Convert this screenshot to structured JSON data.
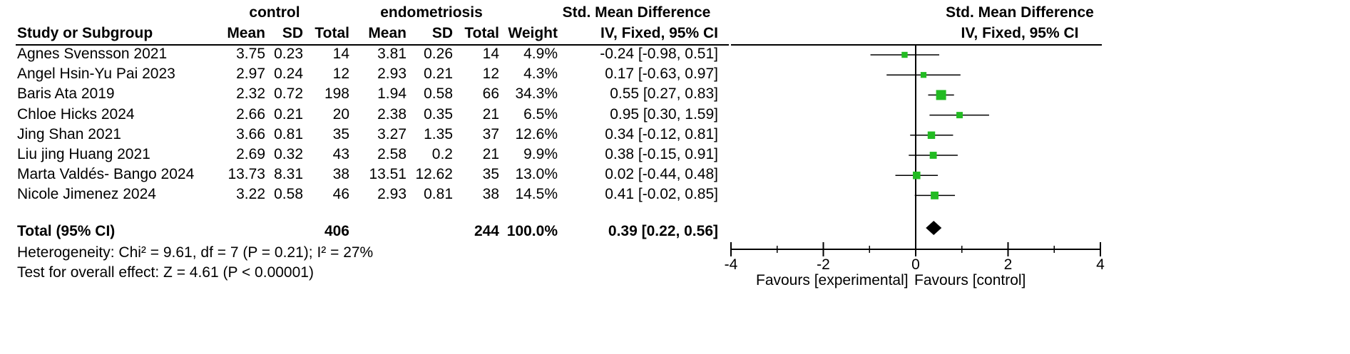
{
  "header": {
    "group1": "control",
    "group2": "endometriosis",
    "effect_title": "Std. Mean Difference",
    "effect_method": "IV, Fixed, 95% CI",
    "plot_title": "Std. Mean Difference",
    "plot_method": "IV, Fixed, 95% CI",
    "study_col": "Study or Subgroup",
    "mean1": "Mean",
    "sd1": "SD",
    "total1": "Total",
    "mean2": "Mean",
    "sd2": "SD",
    "total2": "Total",
    "weight": "Weight"
  },
  "studies": [
    {
      "name": "Agnes Svensson 2021",
      "m1": "3.75",
      "sd1": "0.23",
      "n1": "14",
      "m2": "3.81",
      "sd2": "0.26",
      "n2": "14",
      "weight": "4.9%",
      "ci": "-0.24 [-0.98, 0.51]"
    },
    {
      "name": "Angel Hsin-Yu Pai 2023",
      "m1": "2.97",
      "sd1": "0.24",
      "n1": "12",
      "m2": "2.93",
      "sd2": "0.21",
      "n2": "12",
      "weight": "4.3%",
      "ci": "0.17 [-0.63, 0.97]"
    },
    {
      "name": "Baris Ata 2019",
      "m1": "2.32",
      "sd1": "0.72",
      "n1": "198",
      "m2": "1.94",
      "sd2": "0.58",
      "n2": "66",
      "weight": "34.3%",
      "ci": "0.55 [0.27, 0.83]"
    },
    {
      "name": "Chloe Hicks 2024",
      "m1": "2.66",
      "sd1": "0.21",
      "n1": "20",
      "m2": "2.38",
      "sd2": "0.35",
      "n2": "21",
      "weight": "6.5%",
      "ci": "0.95 [0.30, 1.59]"
    },
    {
      "name": "Jing Shan 2021",
      "m1": "3.66",
      "sd1": "0.81",
      "n1": "35",
      "m2": "3.27",
      "sd2": "1.35",
      "n2": "37",
      "weight": "12.6%",
      "ci": "0.34 [-0.12, 0.81]"
    },
    {
      "name": "Liu jing Huang 2021",
      "m1": "2.69",
      "sd1": "0.32",
      "n1": "43",
      "m2": "2.58",
      "sd2": "0.2",
      "n2": "21",
      "weight": "9.9%",
      "ci": "0.38 [-0.15, 0.91]"
    },
    {
      "name": "Marta Valdés- Bango 2024",
      "m1": "13.73",
      "sd1": "8.31",
      "n1": "38",
      "m2": "13.51",
      "sd2": "12.62",
      "n2": "35",
      "weight": "13.0%",
      "ci": "0.02 [-0.44, 0.48]"
    },
    {
      "name": "Nicole Jimenez 2024",
      "m1": "3.22",
      "sd1": "0.58",
      "n1": "46",
      "m2": "2.93",
      "sd2": "0.81",
      "n2": "38",
      "weight": "14.5%",
      "ci": "0.41 [-0.02, 0.85]"
    }
  ],
  "total": {
    "label": "Total (95% CI)",
    "n1": "406",
    "n2": "244",
    "weight": "100.0%",
    "ci": "0.39 [0.22, 0.56]"
  },
  "heterogeneity": "Heterogeneity: Chi² = 9.61, df = 7 (P = 0.21); I² = 27%",
  "overall_effect": "Test for overall effect: Z = 4.61 (P < 0.00001)",
  "favours_left": "Favours [experimental]",
  "favours_right": "Favours [control]",
  "chart_data": {
    "type": "forest",
    "x_ticks": [
      "-4",
      "-2",
      "0",
      "2",
      "4"
    ],
    "xlim": [
      -4,
      4
    ],
    "marker_color": "#22bb22",
    "points": [
      {
        "study": "Agnes Svensson 2021",
        "est": -0.24,
        "lo": -0.98,
        "hi": 0.51,
        "weight": 4.9
      },
      {
        "study": "Angel Hsin-Yu Pai 2023",
        "est": 0.17,
        "lo": -0.63,
        "hi": 0.97,
        "weight": 4.3
      },
      {
        "study": "Baris Ata 2019",
        "est": 0.55,
        "lo": 0.27,
        "hi": 0.83,
        "weight": 34.3
      },
      {
        "study": "Chloe Hicks 2024",
        "est": 0.95,
        "lo": 0.3,
        "hi": 1.59,
        "weight": 6.5
      },
      {
        "study": "Jing Shan 2021",
        "est": 0.34,
        "lo": -0.12,
        "hi": 0.81,
        "weight": 12.6
      },
      {
        "study": "Liu jing Huang 2021",
        "est": 0.38,
        "lo": -0.15,
        "hi": 0.91,
        "weight": 9.9
      },
      {
        "study": "Marta Valdés- Bango 2024",
        "est": 0.02,
        "lo": -0.44,
        "hi": 0.48,
        "weight": 13.0
      },
      {
        "study": "Nicole Jimenez 2024",
        "est": 0.41,
        "lo": -0.02,
        "hi": 0.85,
        "weight": 14.5
      }
    ],
    "pooled": {
      "est": 0.39,
      "lo": 0.22,
      "hi": 0.56
    }
  }
}
